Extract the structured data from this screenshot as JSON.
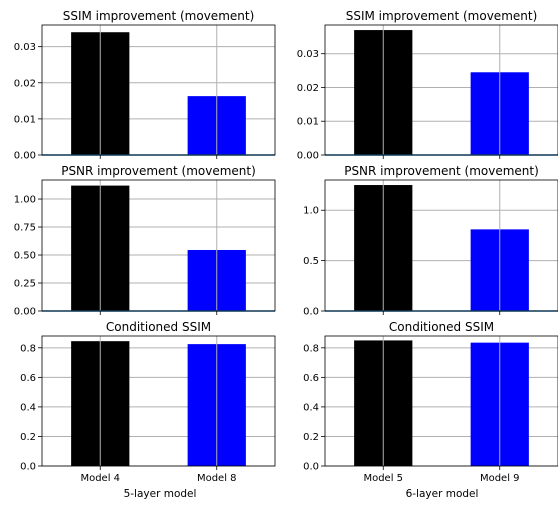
{
  "figure": {
    "columns": [
      {
        "xlabel": "5-layer model"
      },
      {
        "xlabel": "6-layer model"
      }
    ]
  },
  "colors": {
    "bar_first": "#000000",
    "bar_second": "#0000ff",
    "grid": "#b0b0b0",
    "baseline": "#1f77b4",
    "axes": "#000000",
    "background": "#ffffff"
  },
  "chart_data": [
    {
      "type": "bar",
      "title": "SSIM improvement (movement)",
      "categories": [
        "Model 4",
        "Model 8"
      ],
      "values": [
        0.034,
        0.0163
      ],
      "ylim": [
        0,
        0.036
      ],
      "yticks": [
        0,
        0.01,
        0.02,
        0.03
      ],
      "ytick_labels": [
        "0.00",
        "0.01",
        "0.02",
        "0.03"
      ],
      "grid": true,
      "show_xticklabels": false,
      "baseline": true
    },
    {
      "type": "bar",
      "title": "SSIM improvement (movement)",
      "categories": [
        "Model 5",
        "Model 9"
      ],
      "values": [
        0.037,
        0.0245
      ],
      "ylim": [
        0,
        0.0385
      ],
      "yticks": [
        0,
        0.01,
        0.02,
        0.03
      ],
      "ytick_labels": [
        "0.00",
        "0.01",
        "0.02",
        "0.03"
      ],
      "grid": true,
      "show_xticklabels": false,
      "baseline": true
    },
    {
      "type": "bar",
      "title": "PSNR improvement (movement)",
      "categories": [
        "Model 4",
        "Model 8"
      ],
      "values": [
        1.12,
        0.545
      ],
      "ylim": [
        0,
        1.17
      ],
      "yticks": [
        0,
        0.25,
        0.5,
        0.75,
        1.0
      ],
      "ytick_labels": [
        "0.00",
        "0.25",
        "0.50",
        "0.75",
        "1.00"
      ],
      "grid": true,
      "show_xticklabels": false,
      "baseline": true
    },
    {
      "type": "bar",
      "title": "PSNR improvement (movement)",
      "categories": [
        "Model 5",
        "Model 9"
      ],
      "values": [
        1.25,
        0.81
      ],
      "ylim": [
        0,
        1.3
      ],
      "yticks": [
        0,
        0.5,
        1.0
      ],
      "ytick_labels": [
        "0.0",
        "0.5",
        "1.0"
      ],
      "grid": true,
      "show_xticklabels": false,
      "baseline": true
    },
    {
      "type": "bar",
      "title": "Conditioned SSIM",
      "categories": [
        "Model 4",
        "Model 8"
      ],
      "values": [
        0.845,
        0.825
      ],
      "ylim": [
        0,
        0.88
      ],
      "yticks": [
        0,
        0.2,
        0.4,
        0.6,
        0.8
      ],
      "ytick_labels": [
        "0.0",
        "0.2",
        "0.4",
        "0.6",
        "0.8"
      ],
      "grid": true,
      "show_xticklabels": true,
      "baseline": false
    },
    {
      "type": "bar",
      "title": "Conditioned SSIM",
      "categories": [
        "Model 5",
        "Model 9"
      ],
      "values": [
        0.85,
        0.835
      ],
      "ylim": [
        0,
        0.88
      ],
      "yticks": [
        0,
        0.2,
        0.4,
        0.6,
        0.8
      ],
      "ytick_labels": [
        "0.0",
        "0.2",
        "0.4",
        "0.6",
        "0.8"
      ],
      "grid": true,
      "show_xticklabels": true,
      "baseline": false
    }
  ]
}
